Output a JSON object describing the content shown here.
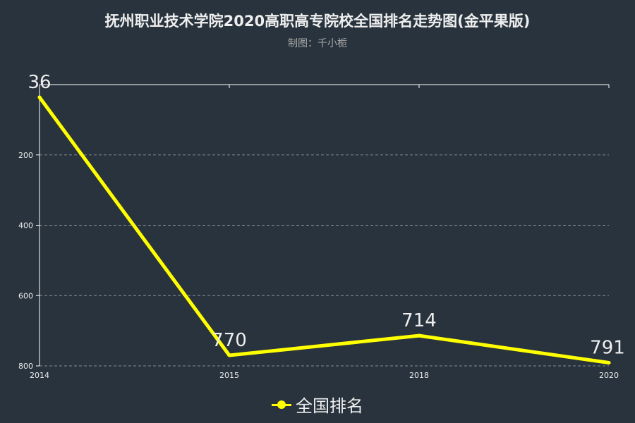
{
  "title": "抚州职业技术学院2020高职高专院校全国排名走势图(金平果版)",
  "subtitle": "制图：千小栀",
  "chart_data": {
    "type": "line",
    "x": [
      "2014",
      "2015",
      "2018",
      "2020"
    ],
    "series": [
      {
        "name": "全国排名",
        "values": [
          36,
          770,
          714,
          791
        ]
      }
    ],
    "yticks": [
      200,
      400,
      600,
      800
    ],
    "ylim": [
      0,
      800
    ],
    "y_inverted": true,
    "grid": true,
    "legend_position": "bottom-center",
    "colors": {
      "line": "#ffff00",
      "background": "#28333d",
      "axis": "#ffffff",
      "grid": "#aaaaaa",
      "text": "#eeeeee"
    }
  }
}
